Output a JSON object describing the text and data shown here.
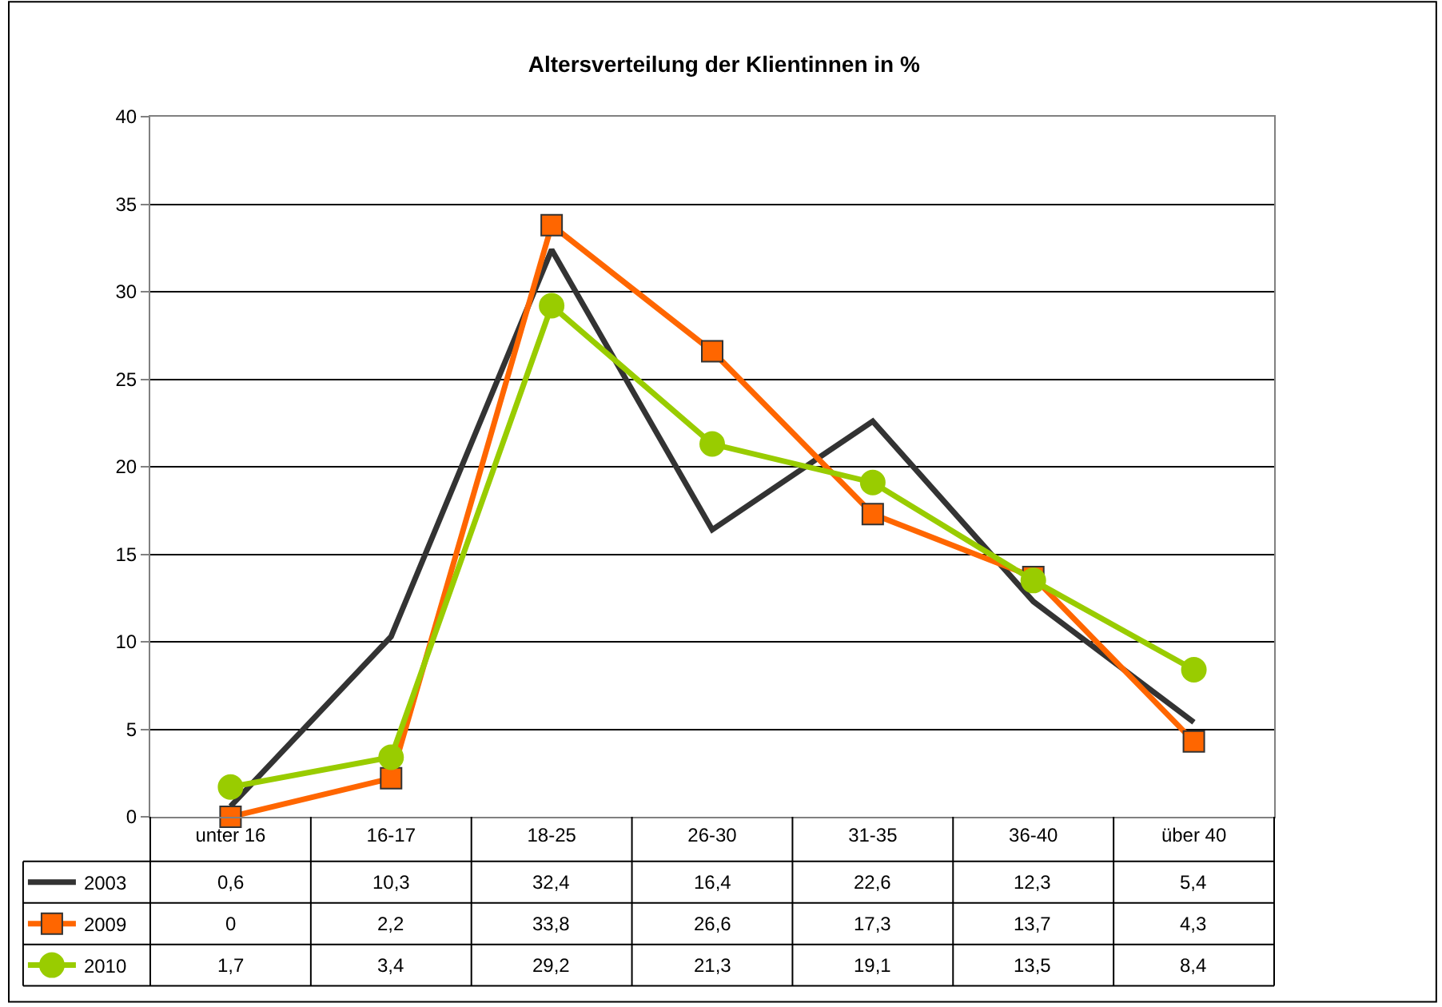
{
  "chart_data": {
    "type": "line",
    "title": "Altersverteilung der Klientinnen in %",
    "categories": [
      "unter 16",
      "16-17",
      "18-25",
      "26-30",
      "31-35",
      "36-40",
      "über 40"
    ],
    "series": [
      {
        "name": "2003",
        "color": "#333333",
        "marker": "none",
        "values": [
          0.6,
          10.3,
          32.4,
          16.4,
          22.6,
          12.3,
          5.4
        ],
        "value_labels": [
          "0,6",
          "10,3",
          "32,4",
          "16,4",
          "22,6",
          "12,3",
          "5,4"
        ]
      },
      {
        "name": "2009",
        "color": "#ff6600",
        "marker": "square",
        "values": [
          0,
          2.2,
          33.8,
          26.6,
          17.3,
          13.7,
          4.3
        ],
        "value_labels": [
          "0",
          "2,2",
          "33,8",
          "26,6",
          "17,3",
          "13,7",
          "4,3"
        ]
      },
      {
        "name": "2010",
        "color": "#99cc00",
        "marker": "circle",
        "values": [
          1.7,
          3.4,
          29.2,
          21.3,
          19.1,
          13.5,
          8.4
        ],
        "value_labels": [
          "1,7",
          "3,4",
          "29,2",
          "21,3",
          "19,1",
          "13,5",
          "8,4"
        ]
      }
    ],
    "ylim": [
      0,
      40
    ],
    "yticks": [
      0,
      5,
      10,
      15,
      20,
      25,
      30,
      35,
      40
    ],
    "grid": "y",
    "legend": "bottom left",
    "line_style": "solid"
  }
}
